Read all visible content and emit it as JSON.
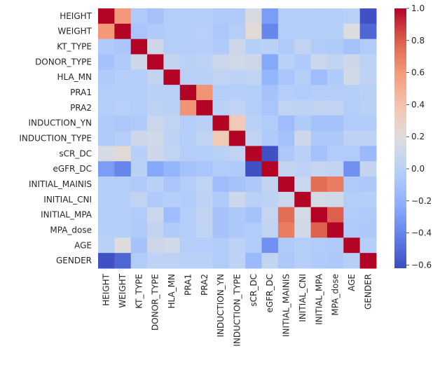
{
  "chart_data": {
    "type": "heatmap",
    "title": "",
    "xlabel": "",
    "ylabel": "",
    "categories": [
      "HEIGHT",
      "WEIGHT",
      "KT_TYPE",
      "DONOR_TYPE",
      "HLA_MN",
      "PRA1",
      "PRA2",
      "INDUCTION_YN",
      "INDUCTION_TYPE",
      "sCR_DC",
      "eGFR_DC",
      "INITIAL_MAINIS",
      "INITIAL_CNI",
      "INITIAL_MPA",
      "MPA_dose",
      "AGE",
      "GENDER"
    ],
    "matrix": [
      [
        1.0,
        0.6,
        -0.05,
        -0.1,
        -0.03,
        -0.03,
        -0.02,
        -0.05,
        -0.05,
        0.15,
        -0.3,
        -0.02,
        -0.02,
        -0.03,
        -0.02,
        0.0,
        -0.6
      ],
      [
        0.6,
        1.0,
        -0.08,
        -0.05,
        -0.03,
        -0.03,
        -0.01,
        -0.07,
        -0.03,
        0.22,
        -0.4,
        -0.03,
        -0.02,
        -0.03,
        -0.02,
        0.18,
        -0.52
      ],
      [
        -0.05,
        -0.08,
        1.0,
        0.1,
        -0.03,
        -0.03,
        -0.03,
        -0.05,
        0.1,
        -0.02,
        0.0,
        -0.05,
        0.04,
        -0.04,
        -0.05,
        -0.1,
        -0.04
      ],
      [
        -0.1,
        -0.05,
        0.1,
        1.0,
        0.05,
        0.0,
        0.02,
        0.08,
        0.12,
        0.1,
        -0.25,
        0.0,
        -0.05,
        0.08,
        0.04,
        0.1,
        0.02
      ],
      [
        -0.05,
        -0.03,
        -0.03,
        0.05,
        1.0,
        0.0,
        0.0,
        0.03,
        0.02,
        0.03,
        -0.18,
        -0.08,
        -0.02,
        -0.13,
        -0.05,
        0.12,
        0.02
      ],
      [
        -0.03,
        -0.03,
        -0.03,
        0.0,
        0.0,
        1.0,
        0.62,
        -0.03,
        -0.02,
        -0.03,
        -0.1,
        -0.03,
        -0.04,
        -0.03,
        -0.03,
        -0.02,
        0.0
      ],
      [
        -0.02,
        -0.01,
        -0.03,
        0.02,
        0.0,
        0.62,
        1.0,
        0.0,
        0.03,
        -0.03,
        -0.08,
        0.03,
        0.02,
        0.04,
        0.03,
        -0.03,
        0.0
      ],
      [
        -0.05,
        -0.07,
        -0.05,
        0.08,
        0.03,
        -0.03,
        0.0,
        1.0,
        0.35,
        0.0,
        -0.04,
        -0.13,
        -0.05,
        -0.1,
        -0.1,
        -0.04,
        -0.04
      ],
      [
        -0.05,
        -0.03,
        0.1,
        0.12,
        0.02,
        -0.02,
        0.03,
        0.35,
        1.0,
        0.03,
        -0.05,
        -0.1,
        0.1,
        -0.06,
        -0.06,
        0.02,
        0.02
      ],
      [
        0.15,
        0.22,
        -0.02,
        0.1,
        0.03,
        -0.03,
        -0.03,
        0.0,
        0.03,
        1.0,
        -0.6,
        -0.06,
        0.0,
        -0.1,
        -0.04,
        -0.04,
        -0.15
      ],
      [
        -0.3,
        -0.4,
        0.0,
        -0.25,
        -0.18,
        -0.1,
        -0.08,
        -0.04,
        -0.05,
        -0.6,
        1.0,
        0.05,
        0.02,
        0.06,
        0.03,
        -0.35,
        0.05
      ],
      [
        -0.02,
        -0.03,
        -0.05,
        0.0,
        -0.08,
        -0.03,
        0.03,
        -0.13,
        -0.1,
        -0.06,
        0.05,
        1.0,
        0.08,
        0.75,
        0.7,
        -0.05,
        -0.06
      ],
      [
        -0.02,
        -0.02,
        0.04,
        -0.05,
        -0.02,
        -0.04,
        0.02,
        -0.05,
        0.1,
        0.0,
        0.02,
        0.08,
        1.0,
        0.14,
        0.12,
        -0.03,
        -0.02
      ],
      [
        -0.03,
        -0.03,
        -0.04,
        0.08,
        -0.13,
        -0.03,
        0.04,
        -0.1,
        -0.06,
        -0.1,
        0.06,
        0.75,
        0.14,
        1.0,
        0.8,
        -0.04,
        -0.05
      ],
      [
        -0.02,
        -0.02,
        -0.05,
        0.04,
        -0.05,
        -0.03,
        0.03,
        -0.1,
        -0.06,
        -0.04,
        0.03,
        0.7,
        0.12,
        0.8,
        1.0,
        -0.05,
        -0.06
      ],
      [
        0.0,
        0.18,
        -0.1,
        0.1,
        0.12,
        -0.02,
        -0.03,
        -0.04,
        0.02,
        -0.04,
        -0.35,
        -0.05,
        -0.03,
        -0.04,
        -0.05,
        1.0,
        -0.02
      ],
      [
        -0.6,
        -0.52,
        -0.04,
        0.02,
        0.02,
        0.0,
        0.0,
        -0.04,
        0.02,
        -0.15,
        0.05,
        -0.06,
        -0.02,
        -0.05,
        -0.06,
        -0.02,
        1.0
      ]
    ],
    "colormap": "coolwarm",
    "vmin": -0.62,
    "vmax": 1.0,
    "colorbar_ticks": [
      "1.0",
      "0.8",
      "0.6",
      "0.4",
      "0.2",
      "0.0",
      "−0.2",
      "−0.4",
      "−0.6"
    ],
    "colorbar_tick_values": [
      1.0,
      0.8,
      0.6,
      0.4,
      0.2,
      0.0,
      -0.2,
      -0.4,
      -0.6
    ],
    "grid": false,
    "legend": "colorbar-right"
  }
}
